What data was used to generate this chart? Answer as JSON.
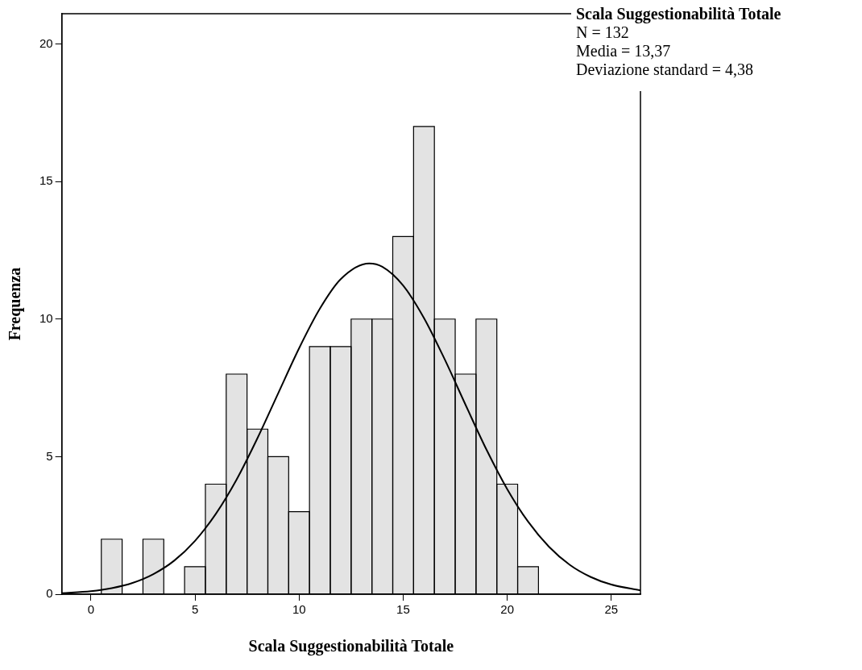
{
  "chart_data": {
    "type": "histogram",
    "xlabel": "Scala Suggestionabilità Totale",
    "ylabel": "Frequenza",
    "annotations": [
      "Scala Suggestionabilità Totale",
      "N = 132",
      "Media = 13,37",
      "Deviazione standard = 4,38"
    ],
    "bins": [
      0.5,
      1.5,
      2.5,
      3.5,
      4.5,
      5.5,
      6.5,
      7.5,
      8.5,
      9.5,
      10.5,
      11.5,
      12.5,
      13.5,
      14.5,
      15.5,
      16.5,
      17.5,
      18.5,
      19.5,
      20.5,
      21.5
    ],
    "color": "#e3e3e3",
    "values": [
      2,
      0,
      2,
      0,
      1,
      4,
      8,
      6,
      5,
      3,
      9,
      9,
      10,
      10,
      13,
      17,
      10,
      8,
      10,
      4,
      1
    ],
    "series": [
      {
        "type": "line",
        "color": "#000000",
        "x": [
          -1.4,
          0,
          1,
          2,
          3,
          4,
          5,
          6,
          7,
          8,
          9,
          10,
          11,
          12,
          13.37,
          14,
          15,
          16,
          17,
          18,
          19,
          20,
          21,
          22,
          23,
          24,
          25,
          26.4
        ],
        "values": [
          0.04,
          0.11,
          0.22,
          0.41,
          0.73,
          1.22,
          1.94,
          2.92,
          4.17,
          5.67,
          7.31,
          8.94,
          10.38,
          11.45,
          12.02,
          11.9,
          11.22,
          10.04,
          8.53,
          6.88,
          5.26,
          3.82,
          2.64,
          1.73,
          1.07,
          0.63,
          0.35,
          0.14
        ]
      }
    ],
    "xlim": [
      -1.4,
      26.4
    ],
    "xticks": [
      0,
      5,
      10,
      15,
      20,
      25
    ],
    "ylim": [
      0,
      21.1
    ],
    "yticks": [
      0,
      5,
      10,
      15,
      20
    ],
    "grid": false,
    "legend": false,
    "marker": "none",
    "line_style": "solid"
  }
}
